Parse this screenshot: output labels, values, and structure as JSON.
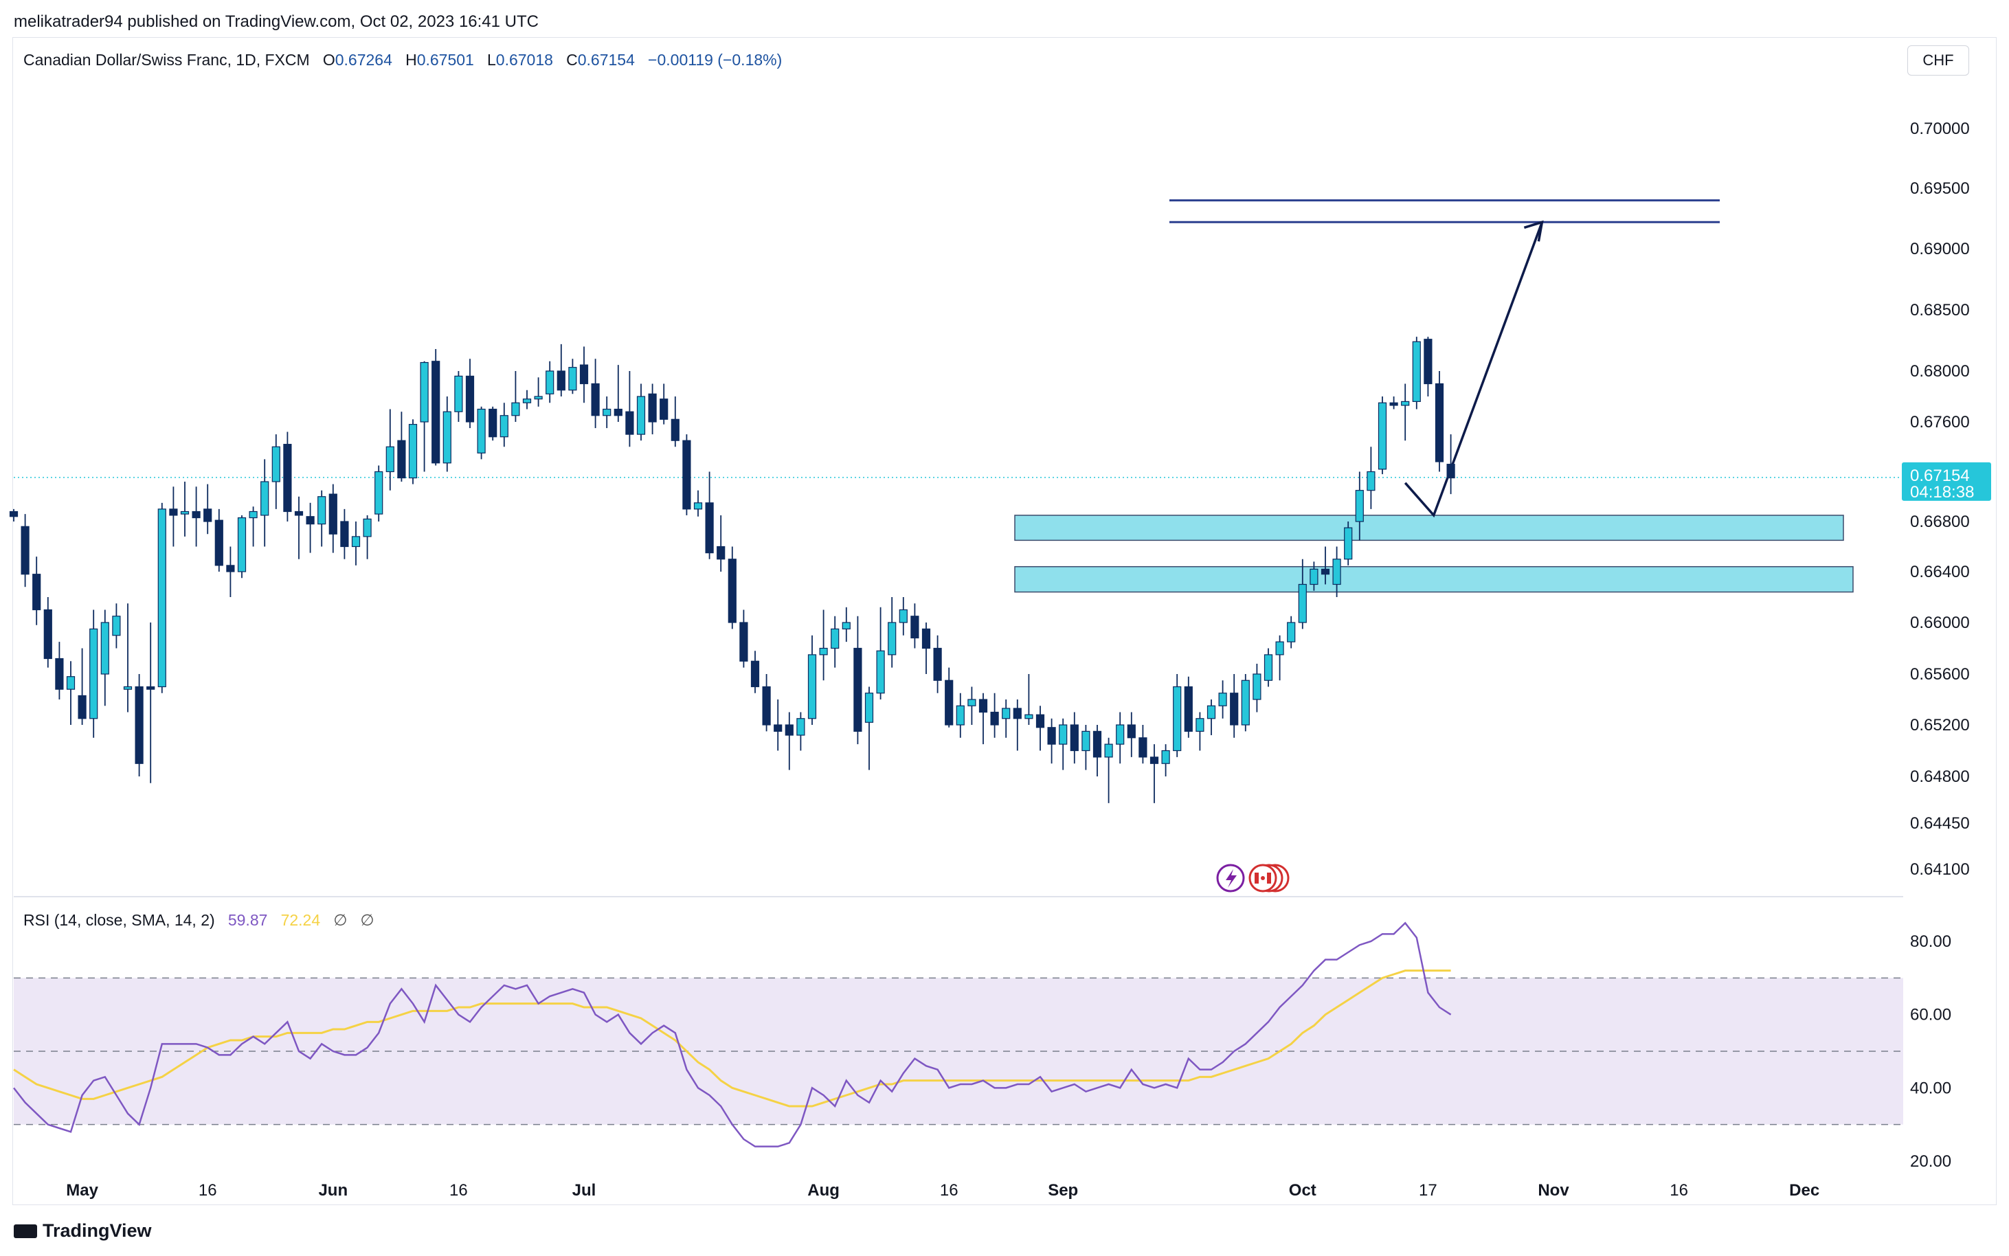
{
  "publisher": "melikatrader94 published on TradingView.com, Oct 02, 2023 16:41 UTC",
  "legend": {
    "symbol": "Canadian Dollar/Swiss Franc, 1D, FXCM",
    "o_label": "O",
    "o": "0.67264",
    "h_label": "H",
    "h": "0.67501",
    "l_label": "L",
    "l": "0.67018",
    "c_label": "C",
    "c": "0.67154",
    "change": "−0.00119 (−0.18%)"
  },
  "currency_button": "CHF",
  "rsi_legend": {
    "name": "RSI (14, close, SMA, 14, 2)",
    "rsi": "59.87",
    "sma": "72.24",
    "hidden1": "∅",
    "hidden2": "∅"
  },
  "last_price_tag": {
    "price": "0.67154",
    "countdown": "04:18:38"
  },
  "brand": "TradingView",
  "colors": {
    "up": "#26c6da",
    "down": "#0d2a5e",
    "zone_fill": "#8fe0ec",
    "zone_stroke": "#3b4a6b",
    "target_line": "#2b3f8f",
    "arrow": "#0d1b4a",
    "rsi_line": "#7e57c2",
    "rsi_sma": "#f5d245",
    "rsi_band": "#ede7f6"
  },
  "chart_data": [
    {
      "type": "candlestick",
      "title": "Canadian Dollar/Swiss Franc, 1D, FXCM",
      "y_axis_ticks": [
        "0.70000",
        "0.69500",
        "0.69000",
        "0.68500",
        "0.68000",
        "0.67600",
        "0.66800",
        "0.66400",
        "0.66000",
        "0.65600",
        "0.65200",
        "0.64800",
        "0.64450",
        "0.64100"
      ],
      "x_axis_ticks": [
        {
          "label": "May",
          "major": true,
          "index": 6
        },
        {
          "label": "16",
          "major": false,
          "index": 17
        },
        {
          "label": "Jun",
          "major": true,
          "index": 28
        },
        {
          "label": "16",
          "major": false,
          "index": 39
        },
        {
          "label": "Jul",
          "major": true,
          "index": 50
        },
        {
          "label": "Aug",
          "major": true,
          "index": 71
        },
        {
          "label": "16",
          "major": false,
          "index": 82
        },
        {
          "label": "Sep",
          "major": true,
          "index": 92
        },
        {
          "label": "Oct",
          "major": true,
          "index": 113
        },
        {
          "label": "17",
          "major": false,
          "index": 124
        },
        {
          "label": "Nov",
          "major": true,
          "index": 135
        },
        {
          "label": "16",
          "major": false,
          "index": 146
        },
        {
          "label": "Dec",
          "major": true,
          "index": 157
        }
      ],
      "ohlc": [
        [
          0.6688,
          0.669,
          0.668,
          0.6684
        ],
        [
          0.6676,
          0.6686,
          0.6628,
          0.6638
        ],
        [
          0.6638,
          0.6652,
          0.6598,
          0.661
        ],
        [
          0.661,
          0.662,
          0.6565,
          0.6572
        ],
        [
          0.6572,
          0.6585,
          0.654,
          0.6548
        ],
        [
          0.6548,
          0.657,
          0.652,
          0.6558
        ],
        [
          0.6543,
          0.658,
          0.652,
          0.6525
        ],
        [
          0.6525,
          0.661,
          0.651,
          0.6595
        ],
        [
          0.656,
          0.661,
          0.6535,
          0.66
        ],
        [
          0.659,
          0.6615,
          0.658,
          0.6605
        ],
        [
          0.6548,
          0.6615,
          0.653,
          0.655
        ],
        [
          0.655,
          0.656,
          0.648,
          0.649
        ],
        [
          0.655,
          0.66,
          0.6475,
          0.6548
        ],
        [
          0.655,
          0.6695,
          0.6545,
          0.669
        ],
        [
          0.669,
          0.6708,
          0.666,
          0.6685
        ],
        [
          0.6686,
          0.6712,
          0.6668,
          0.6688
        ],
        [
          0.6688,
          0.6708,
          0.666,
          0.6683
        ],
        [
          0.669,
          0.671,
          0.667,
          0.668
        ],
        [
          0.6681,
          0.669,
          0.664,
          0.6645
        ],
        [
          0.6645,
          0.666,
          0.662,
          0.664
        ],
        [
          0.664,
          0.6685,
          0.6635,
          0.6683
        ],
        [
          0.6683,
          0.6692,
          0.666,
          0.6688
        ],
        [
          0.6685,
          0.673,
          0.666,
          0.6712
        ],
        [
          0.6712,
          0.675,
          0.669,
          0.674
        ],
        [
          0.6742,
          0.6752,
          0.668,
          0.6688
        ],
        [
          0.6688,
          0.67,
          0.665,
          0.6685
        ],
        [
          0.6684,
          0.6695,
          0.6655,
          0.6678
        ],
        [
          0.6678,
          0.6705,
          0.666,
          0.67
        ],
        [
          0.6702,
          0.671,
          0.6655,
          0.667
        ],
        [
          0.668,
          0.669,
          0.665,
          0.666
        ],
        [
          0.666,
          0.668,
          0.6645,
          0.6668
        ],
        [
          0.6668,
          0.6685,
          0.665,
          0.6682
        ],
        [
          0.6686,
          0.6725,
          0.668,
          0.672
        ],
        [
          0.672,
          0.677,
          0.6705,
          0.674
        ],
        [
          0.6745,
          0.6768,
          0.6712,
          0.6715
        ],
        [
          0.6715,
          0.6762,
          0.671,
          0.6758
        ],
        [
          0.676,
          0.6808,
          0.672,
          0.6807
        ],
        [
          0.6808,
          0.6818,
          0.6725,
          0.6727
        ],
        [
          0.6727,
          0.678,
          0.672,
          0.6768
        ],
        [
          0.6768,
          0.68,
          0.676,
          0.6796
        ],
        [
          0.6796,
          0.681,
          0.6755,
          0.676
        ],
        [
          0.6735,
          0.6772,
          0.673,
          0.677
        ],
        [
          0.677,
          0.6772,
          0.6745,
          0.6748
        ],
        [
          0.6748,
          0.6775,
          0.674,
          0.6765
        ],
        [
          0.6765,
          0.68,
          0.676,
          0.6775
        ],
        [
          0.6775,
          0.6785,
          0.677,
          0.6778
        ],
        [
          0.6778,
          0.6795,
          0.6772,
          0.678
        ],
        [
          0.6782,
          0.6808,
          0.6775,
          0.68
        ],
        [
          0.68,
          0.6822,
          0.678,
          0.6785
        ],
        [
          0.6785,
          0.681,
          0.6782,
          0.6803
        ],
        [
          0.6805,
          0.682,
          0.6775,
          0.679
        ],
        [
          0.679,
          0.681,
          0.6755,
          0.6765
        ],
        [
          0.6765,
          0.678,
          0.6755,
          0.677
        ],
        [
          0.677,
          0.6805,
          0.676,
          0.6765
        ],
        [
          0.6768,
          0.68,
          0.674,
          0.675
        ],
        [
          0.675,
          0.679,
          0.6745,
          0.678
        ],
        [
          0.6782,
          0.679,
          0.675,
          0.676
        ],
        [
          0.6778,
          0.679,
          0.6758,
          0.6762
        ],
        [
          0.6762,
          0.678,
          0.674,
          0.6745
        ],
        [
          0.6745,
          0.675,
          0.6685,
          0.669
        ],
        [
          0.669,
          0.6705,
          0.6684,
          0.6695
        ],
        [
          0.6695,
          0.672,
          0.665,
          0.6655
        ],
        [
          0.666,
          0.6685,
          0.664,
          0.665
        ],
        [
          0.665,
          0.666,
          0.6595,
          0.66
        ],
        [
          0.66,
          0.661,
          0.6565,
          0.657
        ],
        [
          0.657,
          0.6578,
          0.6545,
          0.655
        ],
        [
          0.655,
          0.656,
          0.6515,
          0.652
        ],
        [
          0.652,
          0.654,
          0.65,
          0.6515
        ],
        [
          0.652,
          0.653,
          0.6485,
          0.6512
        ],
        [
          0.6512,
          0.653,
          0.65,
          0.6525
        ],
        [
          0.6525,
          0.659,
          0.652,
          0.6575
        ],
        [
          0.6575,
          0.661,
          0.6555,
          0.658
        ],
        [
          0.658,
          0.6605,
          0.6565,
          0.6595
        ],
        [
          0.6595,
          0.6612,
          0.6585,
          0.66
        ],
        [
          0.658,
          0.6605,
          0.6505,
          0.6515
        ],
        [
          0.6522,
          0.655,
          0.6485,
          0.6545
        ],
        [
          0.6545,
          0.6612,
          0.654,
          0.6578
        ],
        [
          0.6575,
          0.662,
          0.6565,
          0.66
        ],
        [
          0.66,
          0.662,
          0.659,
          0.661
        ],
        [
          0.6605,
          0.6615,
          0.658,
          0.6588
        ],
        [
          0.6595,
          0.66,
          0.656,
          0.658
        ],
        [
          0.658,
          0.659,
          0.6545,
          0.6555
        ],
        [
          0.6555,
          0.6565,
          0.6518,
          0.652
        ],
        [
          0.652,
          0.6545,
          0.651,
          0.6535
        ],
        [
          0.6535,
          0.655,
          0.652,
          0.654
        ],
        [
          0.654,
          0.6545,
          0.6505,
          0.653
        ],
        [
          0.653,
          0.6545,
          0.651,
          0.652
        ],
        [
          0.6525,
          0.654,
          0.651,
          0.6533
        ],
        [
          0.6533,
          0.654,
          0.65,
          0.6525
        ],
        [
          0.6525,
          0.656,
          0.652,
          0.6528
        ],
        [
          0.6528,
          0.6535,
          0.65,
          0.6518
        ],
        [
          0.6518,
          0.6525,
          0.649,
          0.6505
        ],
        [
          0.6505,
          0.6525,
          0.6485,
          0.652
        ],
        [
          0.652,
          0.653,
          0.649,
          0.65
        ],
        [
          0.65,
          0.652,
          0.6485,
          0.6515
        ],
        [
          0.6515,
          0.652,
          0.648,
          0.6495
        ],
        [
          0.6495,
          0.651,
          0.646,
          0.6505
        ],
        [
          0.6505,
          0.653,
          0.649,
          0.652
        ],
        [
          0.652,
          0.653,
          0.6495,
          0.651
        ],
        [
          0.651,
          0.652,
          0.649,
          0.6495
        ],
        [
          0.6495,
          0.6505,
          0.646,
          0.649
        ],
        [
          0.649,
          0.6505,
          0.648,
          0.65
        ],
        [
          0.65,
          0.656,
          0.6495,
          0.655
        ],
        [
          0.655,
          0.6558,
          0.651,
          0.6515
        ],
        [
          0.6515,
          0.653,
          0.65,
          0.6525
        ],
        [
          0.6525,
          0.654,
          0.6512,
          0.6535
        ],
        [
          0.6535,
          0.6555,
          0.6525,
          0.6545
        ],
        [
          0.6545,
          0.656,
          0.651,
          0.652
        ],
        [
          0.652,
          0.656,
          0.6515,
          0.6555
        ],
        [
          0.654,
          0.6568,
          0.653,
          0.656
        ],
        [
          0.6555,
          0.658,
          0.655,
          0.6575
        ],
        [
          0.6575,
          0.659,
          0.6555,
          0.6585
        ],
        [
          0.6585,
          0.6605,
          0.658,
          0.66
        ],
        [
          0.66,
          0.665,
          0.6595,
          0.663
        ],
        [
          0.663,
          0.6648,
          0.6625,
          0.6642
        ],
        [
          0.6642,
          0.666,
          0.663,
          0.6638
        ],
        [
          0.663,
          0.666,
          0.662,
          0.665
        ],
        [
          0.665,
          0.668,
          0.6645,
          0.6675
        ],
        [
          0.668,
          0.672,
          0.6665,
          0.6705
        ],
        [
          0.6705,
          0.674,
          0.669,
          0.672
        ],
        [
          0.6722,
          0.678,
          0.6718,
          0.6775
        ],
        [
          0.6775,
          0.678,
          0.677,
          0.6773
        ],
        [
          0.6773,
          0.679,
          0.6745,
          0.6776
        ],
        [
          0.6776,
          0.6828,
          0.677,
          0.6824
        ],
        [
          0.6826,
          0.6828,
          0.678,
          0.679
        ],
        [
          0.679,
          0.68,
          0.672,
          0.6728
        ],
        [
          0.6726,
          0.675,
          0.6702,
          0.6715
        ]
      ],
      "annotations": {
        "demand_zone_1": {
          "top": 0.6685,
          "bottom": 0.6665
        },
        "demand_zone_2": {
          "top": 0.6644,
          "bottom": 0.6624
        },
        "target_line_1": 0.694,
        "target_line_2": 0.6922,
        "projection_path": [
          {
            "bar": 122,
            "price": 0.6711
          },
          {
            "bar": 124.5,
            "price": 0.6685
          },
          {
            "bar": 134,
            "price": 0.6922
          }
        ],
        "current_price": 0.67154
      }
    },
    {
      "type": "line",
      "title": "RSI (14, close, SMA, 14, 2)",
      "y_axis_ticks": [
        "80.00",
        "60.00",
        "40.00",
        "20.00"
      ],
      "bands": {
        "upper": 70,
        "middle": 50,
        "lower": 30
      },
      "ylim": [
        15,
        90
      ],
      "series": [
        {
          "name": "RSI",
          "values": [
            40,
            36,
            33,
            30,
            29,
            28,
            38,
            42,
            43,
            38,
            33,
            30,
            40,
            52,
            52,
            52,
            52,
            51,
            49,
            49,
            52,
            54,
            52,
            55,
            58,
            50,
            48,
            52,
            50,
            49,
            49,
            51,
            55,
            63,
            67,
            63,
            58,
            68,
            64,
            60,
            58,
            62,
            65,
            68,
            67,
            68,
            63,
            65,
            66,
            67,
            66,
            60,
            58,
            60,
            55,
            52,
            55,
            57,
            55,
            45,
            40,
            38,
            35,
            30,
            26,
            24,
            24,
            24,
            25,
            30,
            40,
            38,
            35,
            42,
            38,
            36,
            42,
            39,
            44,
            48,
            46,
            45,
            40,
            41,
            41,
            42,
            40,
            40,
            41,
            41,
            43,
            39,
            40,
            41,
            39,
            40,
            41,
            40,
            45,
            41,
            40,
            41,
            40,
            48,
            45,
            45,
            47,
            50,
            52,
            55,
            58,
            62,
            65,
            68,
            72,
            75,
            75,
            77,
            79,
            80,
            82,
            82,
            85,
            81,
            66,
            62,
            60
          ]
        },
        {
          "name": "RSI-based MA",
          "values": [
            45,
            43,
            41,
            40,
            39,
            38,
            37,
            37,
            38,
            39,
            40,
            41,
            42,
            43,
            45,
            47,
            49,
            51,
            52,
            53,
            53,
            54,
            54,
            54,
            55,
            55,
            55,
            55,
            56,
            56,
            57,
            58,
            58,
            59,
            60,
            61,
            61,
            61,
            61,
            62,
            62,
            63,
            63,
            63,
            63,
            63,
            63,
            63,
            63,
            63,
            62,
            62,
            62,
            61,
            60,
            59,
            57,
            55,
            53,
            50,
            47,
            45,
            42,
            40,
            39,
            38,
            37,
            36,
            35,
            35,
            35,
            36,
            37,
            38,
            39,
            40,
            41,
            41,
            42,
            42,
            42,
            42,
            42,
            42,
            42,
            42,
            42,
            42,
            42,
            42,
            42,
            42,
            42,
            42,
            42,
            42,
            42,
            42,
            42,
            42,
            42,
            42,
            42,
            42,
            43,
            43,
            44,
            45,
            46,
            47,
            48,
            50,
            52,
            55,
            57,
            60,
            62,
            64,
            66,
            68,
            70,
            71,
            72,
            72,
            72,
            72,
            72
          ]
        }
      ]
    }
  ]
}
